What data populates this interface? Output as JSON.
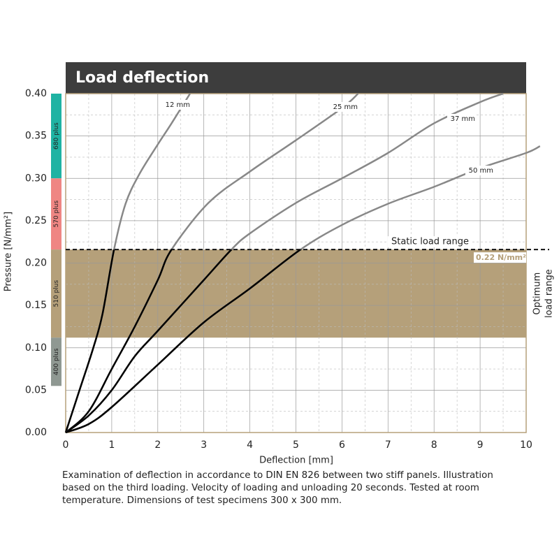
{
  "chart_data": {
    "type": "line",
    "title": "Load deflection",
    "x_label": "Deflection [mm]",
    "y_label": "Pressure [N/mm²]",
    "xlim": [
      0,
      10
    ],
    "ylim": [
      0,
      0.4
    ],
    "xticks": [
      0,
      1,
      2,
      3,
      4,
      5,
      6,
      7,
      8,
      9,
      10
    ],
    "yticks": [
      {
        "value": 0,
        "label": "0.00"
      },
      {
        "value": 0.05,
        "label": "0.05"
      },
      {
        "value": 0.1,
        "label": "0.10"
      },
      {
        "value": 0.15,
        "label": "0.15"
      },
      {
        "value": 0.2,
        "label": "0.20"
      },
      {
        "value": 0.25,
        "label": "0.25"
      },
      {
        "value": 0.3,
        "label": "0.30"
      },
      {
        "value": 0.35,
        "label": "0.35"
      },
      {
        "value": 0.4,
        "label": "0.40"
      }
    ],
    "grid": true,
    "color_below": "#000000",
    "color_above": "#888888",
    "series": [
      {
        "name": "12 mm",
        "x": [
          0,
          0.3,
          0.6,
          0.8,
          1.05,
          1.3,
          1.6,
          2.0,
          2.3,
          2.7
        ],
        "values": [
          0,
          0.05,
          0.1,
          0.14,
          0.216,
          0.27,
          0.305,
          0.34,
          0.365,
          0.4
        ]
      },
      {
        "name": "25 mm",
        "x": [
          0,
          0.5,
          1,
          1.5,
          2,
          2.3,
          3.1,
          4,
          5,
          6,
          6.35
        ],
        "values": [
          0,
          0.025,
          0.075,
          0.125,
          0.18,
          0.216,
          0.271,
          0.308,
          0.345,
          0.383,
          0.4
        ]
      },
      {
        "name": "37 mm",
        "x": [
          0,
          0.5,
          1,
          1.5,
          2,
          3,
          3.6,
          4,
          5,
          6,
          7,
          8,
          9,
          9.5
        ],
        "values": [
          0,
          0.02,
          0.05,
          0.09,
          0.12,
          0.18,
          0.216,
          0.235,
          0.271,
          0.3,
          0.33,
          0.365,
          0.39,
          0.4
        ]
      },
      {
        "name": "50 mm",
        "x": [
          0,
          0.5,
          1,
          2,
          3,
          4,
          5.1,
          6,
          7,
          8,
          9,
          10,
          10.3
        ],
        "values": [
          0,
          0.01,
          0.03,
          0.08,
          0.13,
          0.17,
          0.216,
          0.245,
          0.27,
          0.29,
          0.312,
          0.33,
          0.338
        ]
      }
    ],
    "reference_line": {
      "label": "Static load range",
      "value": 0.216,
      "value_label": "0.22 N/mm²"
    },
    "band": {
      "label_lines": [
        "Optimum",
        "load range"
      ],
      "range": [
        0.112,
        0.216
      ],
      "color": "#b5a07a"
    },
    "grades": [
      {
        "label": "680 plus",
        "range": [
          0.3,
          0.4
        ],
        "color": "#1fb3a3"
      },
      {
        "label": "570 plus",
        "range": [
          0.216,
          0.3
        ],
        "color": "#ef8683"
      },
      {
        "label": "510 plus",
        "range": [
          0.112,
          0.216
        ],
        "color": "#b5a07a"
      },
      {
        "label": "400 plus",
        "range": [
          0.055,
          0.112
        ],
        "color": "#8f9892"
      }
    ],
    "caption": "Examination of deflection in accordance to DIN EN 826 between two stiff panels. Illustration based on the third loading. Velocity of loading and unloading 20 seconds. Tested at room temperature. Dimensions of test specimens 300 x 300 mm."
  }
}
